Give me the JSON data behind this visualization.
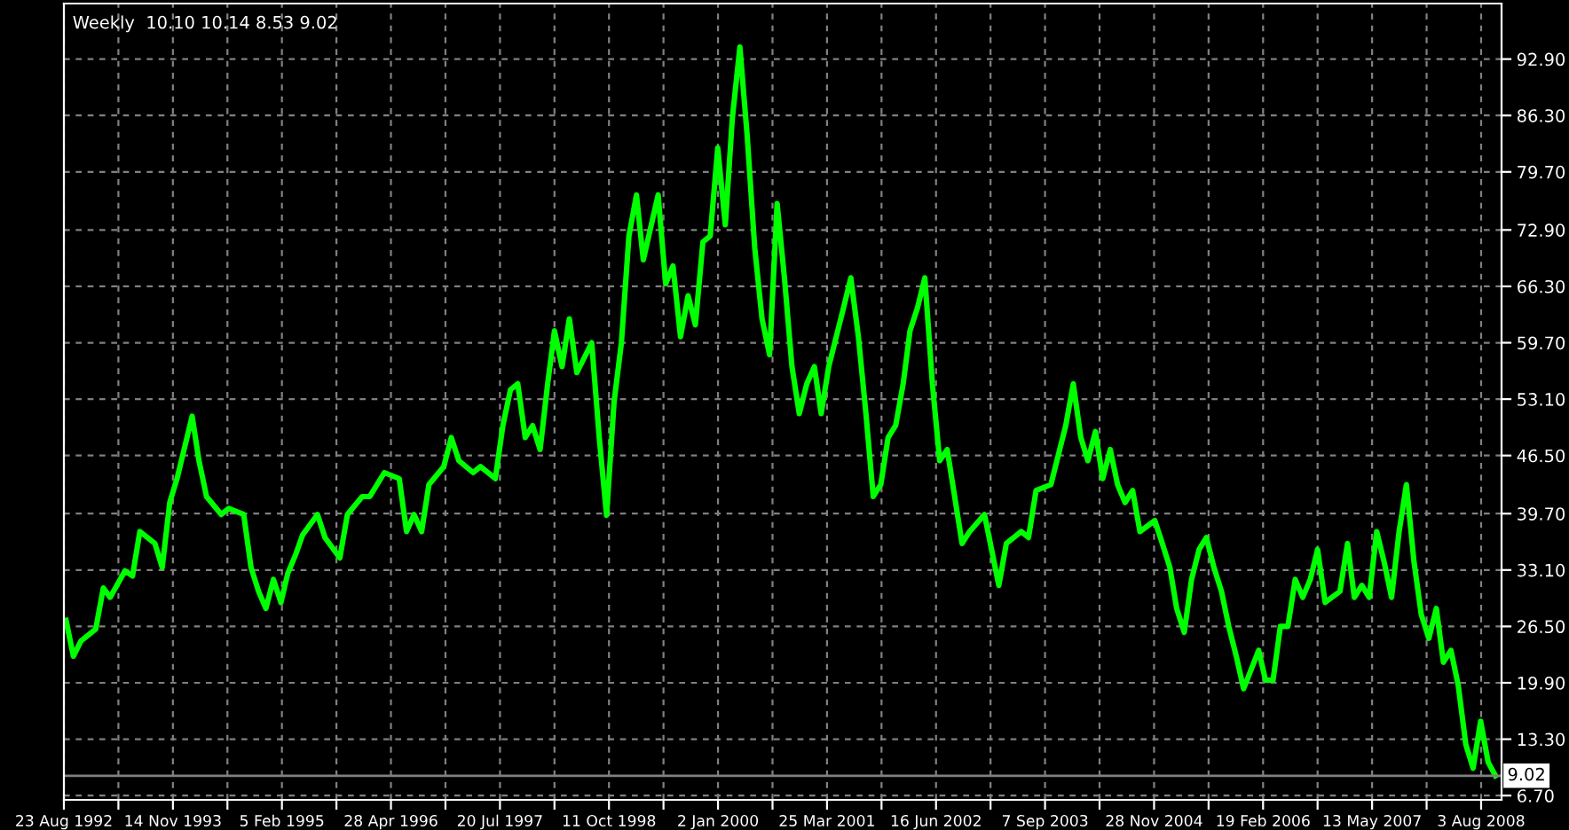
{
  "chart_data": {
    "type": "line",
    "title": "Weekly  10.10 10.14 8.53 9.02",
    "x": [
      "1992-09",
      "1992-10",
      "1992-11",
      "1993-01",
      "1993-02",
      "1993-03",
      "1993-05",
      "1993-06",
      "1993-07",
      "1993-09",
      "1993-10",
      "1993-11",
      "1993-12",
      "1994-02",
      "1994-03",
      "1994-04",
      "1994-06",
      "1994-07",
      "1994-09",
      "1994-10",
      "1994-11",
      "1994-12",
      "1995-01",
      "1995-02",
      "1995-03",
      "1995-04",
      "1995-05",
      "1995-07",
      "1995-08",
      "1995-10",
      "1995-11",
      "1996-01",
      "1996-02",
      "1996-04",
      "1996-06",
      "1996-07",
      "1996-08",
      "1996-09",
      "1996-10",
      "1996-12",
      "1997-01",
      "1997-02",
      "1997-04",
      "1997-05",
      "1997-07",
      "1997-08",
      "1997-09",
      "1997-10",
      "1997-11",
      "1997-12",
      "1998-01",
      "1998-02",
      "1998-03",
      "1998-04",
      "1998-05",
      "1998-06",
      "1998-08",
      "1998-09",
      "1998-10",
      "1998-11",
      "1998-12",
      "1999-01",
      "1999-02",
      "1999-03",
      "1999-05",
      "1999-06",
      "1999-07",
      "1999-08",
      "1999-09",
      "1999-10",
      "1999-11",
      "1999-12",
      "2000-01",
      "2000-02",
      "2000-03",
      "2000-04",
      "2000-05",
      "2000-06",
      "2000-07",
      "2000-08",
      "2000-09",
      "2000-10",
      "2000-11",
      "2000-12",
      "2001-01",
      "2001-02",
      "2001-03",
      "2001-04",
      "2001-06",
      "2001-07",
      "2001-08",
      "2001-09",
      "2001-10",
      "2001-11",
      "2001-12",
      "2002-01",
      "2002-02",
      "2002-03",
      "2002-04",
      "2002-05",
      "2002-06",
      "2002-07",
      "2002-08",
      "2002-10",
      "2002-11",
      "2003-01",
      "2003-03",
      "2003-04",
      "2003-06",
      "2003-07",
      "2003-08",
      "2003-10",
      "2003-12",
      "2004-01",
      "2004-02",
      "2004-03",
      "2004-04",
      "2004-05",
      "2004-06",
      "2004-07",
      "2004-08",
      "2004-09",
      "2004-10",
      "2004-12",
      "2005-01",
      "2005-02",
      "2005-03",
      "2005-04",
      "2005-05",
      "2005-06",
      "2005-07",
      "2005-08",
      "2005-09",
      "2005-10",
      "2005-11",
      "2005-12",
      "2006-02",
      "2006-03",
      "2006-04",
      "2006-05",
      "2006-06",
      "2006-07",
      "2006-08",
      "2006-09",
      "2006-10",
      "2006-11",
      "2007-01",
      "2007-02",
      "2007-03",
      "2007-04",
      "2007-05",
      "2007-06",
      "2007-07",
      "2007-08",
      "2007-09",
      "2007-10",
      "2007-11",
      "2007-12",
      "2008-01",
      "2008-02",
      "2008-03",
      "2008-04",
      "2008-05",
      "2008-06",
      "2008-07",
      "2008-08",
      "2008-09",
      "2008-10"
    ],
    "series": [
      {
        "color": "#00ff00",
        "values": [
          27.2,
          23.0,
          24.8,
          26.2,
          31.0,
          29.9,
          33.0,
          32.4,
          37.6,
          36.2,
          33.4,
          41.0,
          43.8,
          51.1,
          45.9,
          41.7,
          39.6,
          40.3,
          39.6,
          33.4,
          30.6,
          28.6,
          32.0,
          29.3,
          32.7,
          34.8,
          37.2,
          39.6,
          36.9,
          34.5,
          39.6,
          41.7,
          41.7,
          44.5,
          43.8,
          37.6,
          39.6,
          37.6,
          43.1,
          45.2,
          48.6,
          45.9,
          44.5,
          45.2,
          43.8,
          50.0,
          54.2,
          54.9,
          48.6,
          50.0,
          47.2,
          54.9,
          61.1,
          56.9,
          62.5,
          56.2,
          59.7,
          48.6,
          39.5,
          52.8,
          59.7,
          72.2,
          77.0,
          69.4,
          77.0,
          66.6,
          68.7,
          60.4,
          65.2,
          61.8,
          71.5,
          72.2,
          82.5,
          73.5,
          86.0,
          94.3,
          83.9,
          70.8,
          62.5,
          58.3,
          76.0,
          67.3,
          56.9,
          51.4,
          54.9,
          56.9,
          51.4,
          56.9,
          63.8,
          67.3,
          60.4,
          51.4,
          41.7,
          43.1,
          48.6,
          50.0,
          54.9,
          61.1,
          63.8,
          67.3,
          54.9,
          45.9,
          47.2,
          36.2,
          37.6,
          39.6,
          31.3,
          36.2,
          37.6,
          36.9,
          42.4,
          43.1,
          50.0,
          54.9,
          48.6,
          45.9,
          49.3,
          43.8,
          47.2,
          43.1,
          41.0,
          42.4,
          37.6,
          38.9,
          36.2,
          33.4,
          28.6,
          25.8,
          32.0,
          35.5,
          36.9,
          33.4,
          30.6,
          26.5,
          23.0,
          19.2,
          23.7,
          20.2,
          20.2,
          26.5,
          26.5,
          32.0,
          29.9,
          32.0,
          35.5,
          29.3,
          30.6,
          36.2,
          29.9,
          31.3,
          29.9,
          37.6,
          34.1,
          29.9,
          37.6,
          43.1,
          34.1,
          27.9,
          25.1,
          28.6,
          22.3,
          23.7,
          19.6,
          12.7,
          9.9,
          15.4,
          10.6,
          9.02
        ]
      }
    ],
    "xlim": [
      "1992-08-23",
      "2008-10-26"
    ],
    "xticks": [
      {
        "value": "1992-08-23",
        "label": "23 Aug 1992"
      },
      {
        "value": "1993-04-04",
        "label": null
      },
      {
        "value": "1993-11-14",
        "label": "14 Nov 1993"
      },
      {
        "value": "1994-06-26",
        "label": null
      },
      {
        "value": "1995-02-05",
        "label": "5 Feb 1995"
      },
      {
        "value": "1995-09-17",
        "label": null
      },
      {
        "value": "1996-04-28",
        "label": "28 Apr 1996"
      },
      {
        "value": "1996-12-08",
        "label": null
      },
      {
        "value": "1997-07-20",
        "label": "20 Jul 1997"
      },
      {
        "value": "1998-03-01",
        "label": null
      },
      {
        "value": "1998-10-11",
        "label": "11 Oct 1998"
      },
      {
        "value": "1999-05-23",
        "label": null
      },
      {
        "value": "2000-01-02",
        "label": "2 Jan 2000"
      },
      {
        "value": "2000-08-13",
        "label": null
      },
      {
        "value": "2001-03-25",
        "label": "25 Mar 2001"
      },
      {
        "value": "2001-11-04",
        "label": null
      },
      {
        "value": "2002-06-16",
        "label": "16 Jun 2002"
      },
      {
        "value": "2003-01-26",
        "label": null
      },
      {
        "value": "2003-09-07",
        "label": "7 Sep 2003"
      },
      {
        "value": "2004-04-18",
        "label": null
      },
      {
        "value": "2004-11-28",
        "label": "28 Nov 2004"
      },
      {
        "value": "2005-07-10",
        "label": null
      },
      {
        "value": "2006-02-19",
        "label": "19 Feb 2006"
      },
      {
        "value": "2006-10-01",
        "label": null
      },
      {
        "value": "2007-05-13",
        "label": "13 May 2007"
      },
      {
        "value": "2007-12-23",
        "label": null
      },
      {
        "value": "2008-08-03",
        "label": "3 Aug 2008"
      }
    ],
    "ylim": [
      6.2,
      99.4
    ],
    "yticks": [
      {
        "value": 6.7,
        "label": "6.70"
      },
      {
        "value": 13.3,
        "label": "13.30"
      },
      {
        "value": 19.9,
        "label": "19.90"
      },
      {
        "value": 26.5,
        "label": "26.50"
      },
      {
        "value": 33.1,
        "label": "33.10"
      },
      {
        "value": 39.7,
        "label": "39.70"
      },
      {
        "value": 46.5,
        "label": "46.50"
      },
      {
        "value": 53.1,
        "label": "53.10"
      },
      {
        "value": 59.7,
        "label": "59.70"
      },
      {
        "value": 66.3,
        "label": "66.30"
      },
      {
        "value": 72.9,
        "label": "72.90"
      },
      {
        "value": 79.7,
        "label": "79.70"
      },
      {
        "value": 86.3,
        "label": "86.30"
      },
      {
        "value": 92.9,
        "label": "92.90"
      }
    ],
    "ref_lines": [
      {
        "axis": "y",
        "value": 9.02,
        "label": "9.02",
        "color": "#808080"
      }
    ],
    "grid": true,
    "line_style": "solid",
    "marker": "none"
  }
}
